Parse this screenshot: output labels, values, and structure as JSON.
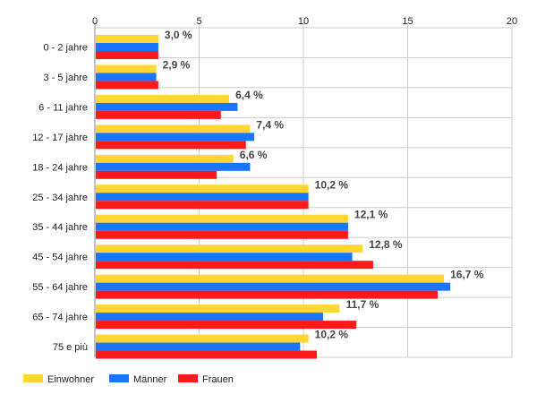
{
  "chart_data": {
    "type": "bar",
    "orientation": "horizontal",
    "categories": [
      "0 - 2 jahre",
      "3 - 5 jahre",
      "6 - 11 jahre",
      "12 - 17 jahre",
      "18 - 24 jahre",
      "25 - 34 jahre",
      "35 - 44 jahre",
      "45 - 54 jahre",
      "55 - 64 jahre",
      "65 - 74 jahre",
      "75 e più"
    ],
    "series": [
      {
        "name": "Einwohner",
        "color": "#ffd633",
        "values": [
          3.0,
          2.9,
          6.4,
          7.4,
          6.6,
          10.2,
          12.1,
          12.8,
          16.7,
          11.7,
          10.2
        ]
      },
      {
        "name": "Männer",
        "color": "#1a75ff",
        "values": [
          3.0,
          2.9,
          6.8,
          7.6,
          7.4,
          10.2,
          12.1,
          12.3,
          17.0,
          10.9,
          9.8
        ]
      },
      {
        "name": "Frauen",
        "color": "#ff1a1a",
        "values": [
          3.0,
          3.0,
          6.0,
          7.2,
          5.8,
          10.2,
          12.1,
          13.3,
          16.4,
          12.5,
          10.6
        ]
      }
    ],
    "data_labels": [
      "3,0 %",
      "2,9 %",
      "6,4 %",
      "7,4 %",
      "6,6 %",
      "10,2 %",
      "12,1 %",
      "12,8 %",
      "16,7 %",
      "11,7 %",
      "10,2 %"
    ],
    "xlim": [
      0,
      20
    ],
    "xticks": [
      0,
      5,
      10,
      15,
      20
    ],
    "x_axis_position": "top",
    "grid": true,
    "legend_position": "bottom-left",
    "title": "",
    "xlabel": "",
    "ylabel": ""
  }
}
